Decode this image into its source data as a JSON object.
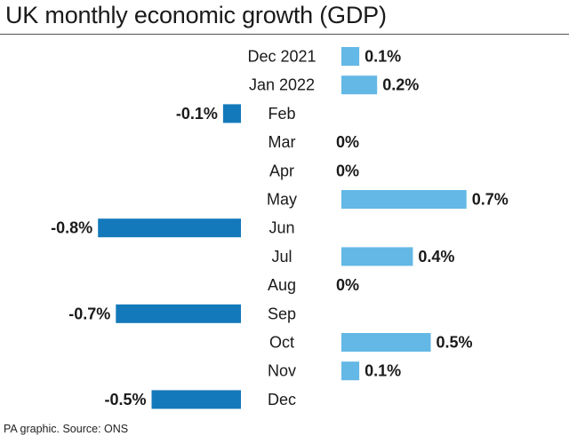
{
  "header": {
    "title": "UK monthly economic growth (GDP)"
  },
  "footer": {
    "source": "PA graphic. Source: ONS"
  },
  "colors": {
    "positive": "#64b8e6",
    "negative": "#1479ba",
    "text": "#1a1a1a"
  },
  "chart_data": {
    "type": "bar",
    "orientation": "horizontal",
    "title": "UK monthly economic growth (GDP)",
    "categories": [
      "Dec 2021",
      "Jan 2022",
      "Feb",
      "Mar",
      "Apr",
      "May",
      "Jun",
      "Jul",
      "Aug",
      "Sep",
      "Oct",
      "Nov",
      "Dec"
    ],
    "values": [
      0.1,
      0.2,
      -0.1,
      0,
      0,
      0.7,
      -0.8,
      0.4,
      0,
      -0.7,
      0.5,
      0.1,
      -0.5
    ],
    "value_labels": [
      "0.1%",
      "0.2%",
      "-0.1%",
      "0%",
      "0%",
      "0.7%",
      "-0.8%",
      "0.4%",
      "0%",
      "-0.7%",
      "0.5%",
      "0.1%",
      "-0.5%"
    ],
    "unit": "%",
    "grid": false,
    "legend": "none"
  }
}
